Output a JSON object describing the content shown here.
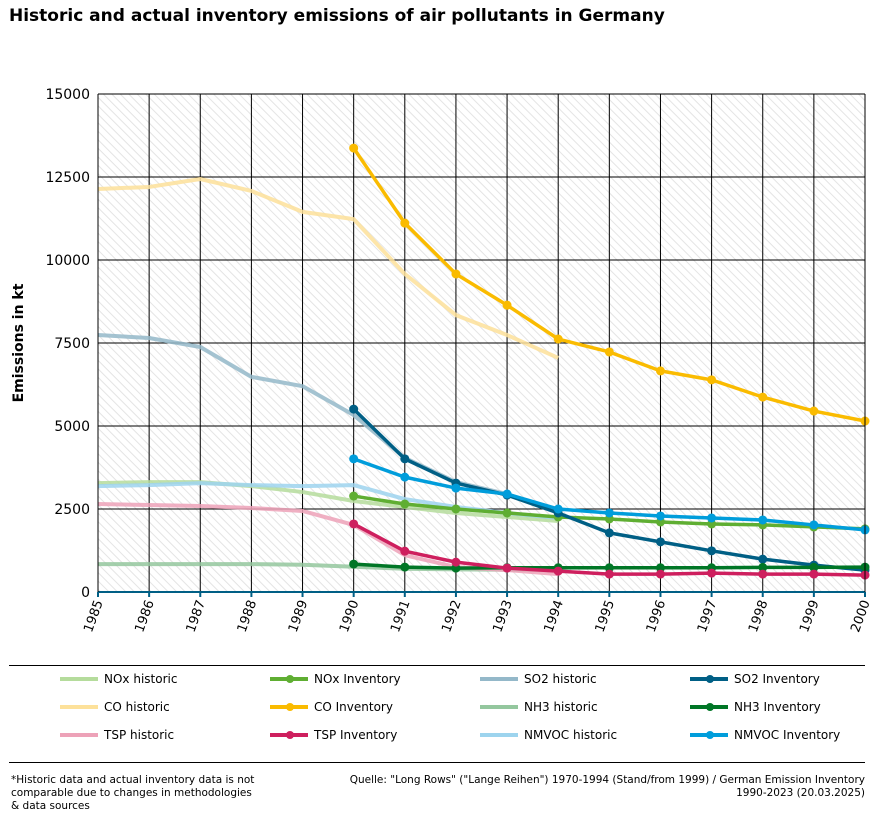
{
  "chart_data": {
    "type": "line",
    "title": "Historic and actual inventory emissions of air pollutants in Germany",
    "xlabel": "",
    "ylabel": "Emissions in kt",
    "xlim": [
      1985,
      2000
    ],
    "ylim": [
      0,
      15000
    ],
    "yticks": [
      "0",
      "2500",
      "5000",
      "7500",
      "10000",
      "12500",
      "15000"
    ],
    "xticks": [
      "1985",
      "1986",
      "1987",
      "1988",
      "1989",
      "1990",
      "1991",
      "1992",
      "1993",
      "1994",
      "1995",
      "1996",
      "1997",
      "1998",
      "1999",
      "2000"
    ],
    "grid": true,
    "legend_position": "bottom",
    "series": [
      {
        "name": "NOx historic",
        "color": "#b5dc9c",
        "markers": false,
        "x": [
          1985,
          1986,
          1987,
          1988,
          1989,
          1990,
          1991,
          1992,
          1993,
          1994
        ],
        "values": [
          3280,
          3310,
          3310,
          3190,
          3010,
          2740,
          2560,
          2380,
          2260,
          2140
        ]
      },
      {
        "name": "NOx Inventory",
        "color": "#5fae32",
        "markers": true,
        "x": [
          1990,
          1991,
          1992,
          1993,
          1994,
          1995,
          1996,
          1997,
          1998,
          1999,
          2000
        ],
        "values": [
          2890,
          2650,
          2500,
          2380,
          2260,
          2200,
          2110,
          2050,
          2020,
          1960,
          1900
        ]
      },
      {
        "name": "SO2 historic",
        "color": "#94b8c9",
        "markers": false,
        "x": [
          1985,
          1986,
          1987,
          1988,
          1989,
          1990,
          1991,
          1992,
          1993,
          1994
        ],
        "values": [
          7740,
          7650,
          7380,
          6480,
          6200,
          5330,
          4040,
          3310,
          2950,
          2410
        ]
      },
      {
        "name": "SO2 Inventory",
        "color": "#005f85",
        "markers": true,
        "x": [
          1990,
          1991,
          1992,
          1993,
          1994,
          1995,
          1996,
          1997,
          1998,
          1999,
          2000
        ],
        "values": [
          5510,
          4010,
          3280,
          2920,
          2380,
          1780,
          1510,
          1240,
          990,
          810,
          660
        ]
      },
      {
        "name": "CO historic",
        "color": "#fde19a",
        "markers": false,
        "x": [
          1985,
          1986,
          1987,
          1988,
          1989,
          1990,
          1991,
          1992,
          1993,
          1994
        ],
        "values": [
          12140,
          12200,
          12440,
          12080,
          11450,
          11230,
          9580,
          8340,
          7740,
          7050
        ]
      },
      {
        "name": "CO Inventory",
        "color": "#fabb00",
        "markers": true,
        "x": [
          1990,
          1991,
          1992,
          1993,
          1994,
          1995,
          1996,
          1997,
          1998,
          1999,
          2000
        ],
        "values": [
          13370,
          11110,
          9580,
          8640,
          7620,
          7230,
          6660,
          6390,
          5870,
          5450,
          5150
        ]
      },
      {
        "name": "NH3 historic",
        "color": "#94c79e",
        "markers": false,
        "x": [
          1985,
          1986,
          1987,
          1988,
          1989,
          1990,
          1991,
          1992,
          1993,
          1994
        ],
        "values": [
          840,
          840,
          840,
          840,
          820,
          760,
          700,
          680,
          670,
          660
        ]
      },
      {
        "name": "NH3 Inventory",
        "color": "#007626",
        "markers": true,
        "x": [
          1990,
          1991,
          1992,
          1993,
          1994,
          1995,
          1996,
          1997,
          1998,
          1999,
          2000
        ],
        "values": [
          840,
          750,
          720,
          730,
          730,
          730,
          730,
          730,
          740,
          740,
          750
        ]
      },
      {
        "name": "TSP historic",
        "color": "#eda2b8",
        "markers": false,
        "x": [
          1985,
          1986,
          1987,
          1988,
          1989,
          1990,
          1991,
          1992,
          1993,
          1994
        ],
        "values": [
          2650,
          2620,
          2590,
          2530,
          2440,
          2020,
          1110,
          750,
          660,
          540
        ]
      },
      {
        "name": "TSP Inventory",
        "color": "#ce1f5e",
        "markers": true,
        "x": [
          1990,
          1991,
          1992,
          1993,
          1994,
          1995,
          1996,
          1997,
          1998,
          1999,
          2000
        ],
        "values": [
          2050,
          1230,
          900,
          720,
          630,
          540,
          540,
          570,
          540,
          540,
          510
        ]
      },
      {
        "name": "NMVOC historic",
        "color": "#9dd4ee",
        "markers": false,
        "x": [
          1985,
          1986,
          1987,
          1988,
          1989,
          1990,
          1991,
          1992,
          1993,
          1994
        ],
        "values": [
          3190,
          3220,
          3280,
          3220,
          3190,
          3220,
          2800,
          2560,
          2380,
          2230
        ]
      },
      {
        "name": "NMVOC Inventory",
        "color": "#009ddb",
        "markers": true,
        "x": [
          1990,
          1991,
          1992,
          1993,
          1994,
          1995,
          1996,
          1997,
          1998,
          1999,
          2000
        ],
        "values": [
          4010,
          3460,
          3130,
          2950,
          2500,
          2380,
          2290,
          2230,
          2170,
          2020,
          1870
        ]
      }
    ]
  },
  "legend_order": [
    0,
    1,
    2,
    3,
    4,
    5,
    6,
    7,
    8,
    9,
    10,
    11
  ],
  "footnote": "*Historic data and actual inventory data is not comparable due to changes in methodologies & data sources",
  "source": "Quelle: \"Long Rows\" (\"Lange Reihen\") 1970-1994 (Stand/from 1999) / German Emission Inventory 1990-2023   (20.03.2025)"
}
